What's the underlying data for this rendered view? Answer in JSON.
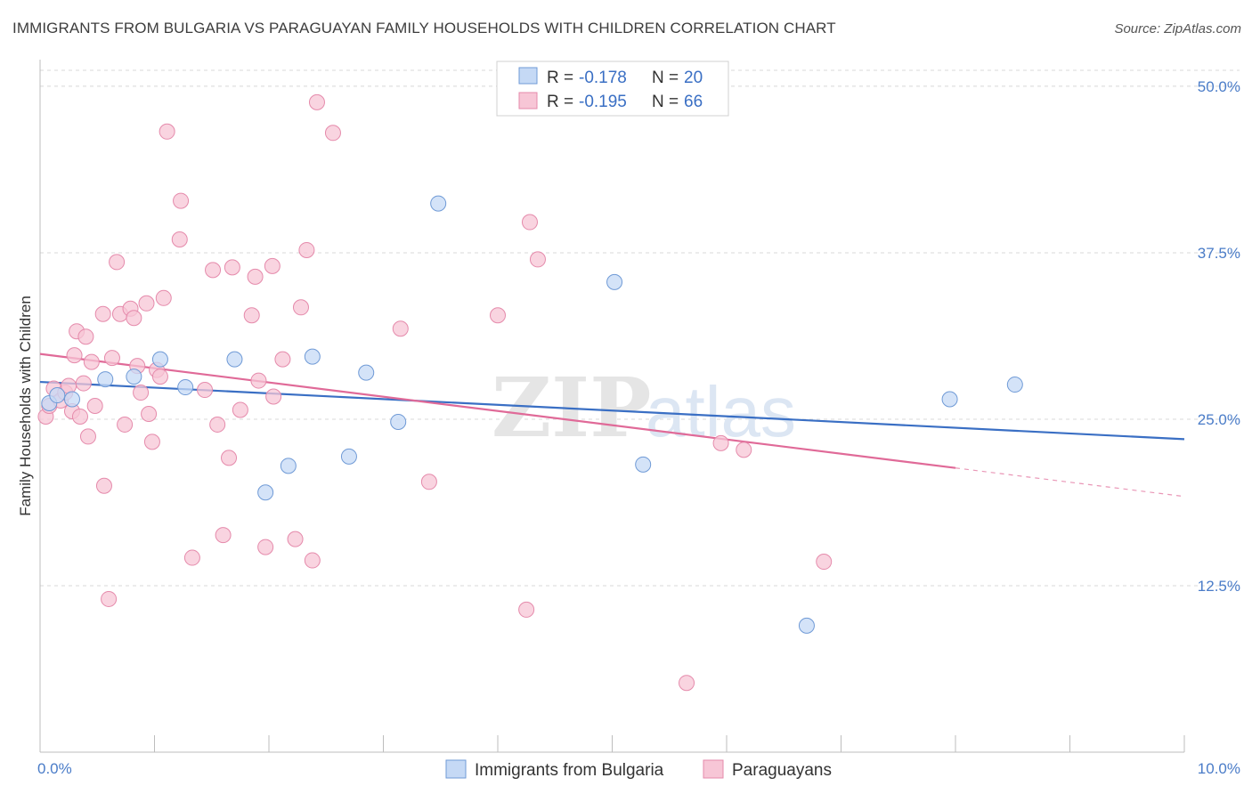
{
  "header": {
    "title": "IMMIGRANTS FROM BULGARIA VS PARAGUAYAN FAMILY HOUSEHOLDS WITH CHILDREN CORRELATION CHART",
    "source": "Source: ZipAtlas.com"
  },
  "watermark": {
    "part1": "ZIP",
    "part2": "atlas"
  },
  "colors": {
    "blue": "#3a6fc4",
    "blue_fill": "#c5d9f5",
    "pink": "#e06a98",
    "pink_fill": "#f7c6d6",
    "tick": "#4a7cc8",
    "grid": "#d8d8d8"
  },
  "chart_data": {
    "type": "scatter",
    "title": "IMMIGRANTS FROM BULGARIA VS PARAGUAYAN FAMILY HOUSEHOLDS WITH CHILDREN CORRELATION CHART",
    "xlabel": "",
    "ylabel": "Family Households with Children",
    "xlim": [
      0,
      10
    ],
    "ylim": [
      0,
      52
    ],
    "x_tick_labels": [
      "0.0%",
      "10.0%"
    ],
    "y_ticks": [
      12.5,
      25.0,
      37.5,
      50.0
    ],
    "y_tick_labels": [
      "12.5%",
      "25.0%",
      "37.5%",
      "50.0%"
    ],
    "grid": true,
    "legend_position": "top-center",
    "series": [
      {
        "name": "Immigrants from Bulgaria",
        "R_label": "R =",
        "R": "-0.178",
        "N_label": "N =",
        "N": "20",
        "color": "#3a6fc4",
        "trend": {
          "x": [
            0,
            10
          ],
          "y": [
            27.8,
            23.5
          ],
          "solid_until": 10
        },
        "points": [
          [
            0.08,
            26.2
          ],
          [
            0.15,
            26.8
          ],
          [
            0.28,
            26.5
          ],
          [
            0.57,
            28.0
          ],
          [
            0.82,
            28.2
          ],
          [
            1.05,
            29.5
          ],
          [
            1.27,
            27.4
          ],
          [
            1.7,
            29.5
          ],
          [
            1.97,
            19.5
          ],
          [
            2.17,
            21.5
          ],
          [
            2.38,
            29.7
          ],
          [
            2.7,
            22.2
          ],
          [
            2.85,
            28.5
          ],
          [
            3.13,
            24.8
          ],
          [
            3.48,
            41.2
          ],
          [
            5.02,
            35.3
          ],
          [
            5.27,
            21.6
          ],
          [
            6.7,
            9.5
          ],
          [
            7.95,
            26.5
          ],
          [
            8.52,
            27.6
          ]
        ]
      },
      {
        "name": "Paraguayans",
        "R_label": "R =",
        "R": "-0.195",
        "N_label": "N =",
        "N": "66",
        "color": "#e06a98",
        "trend": {
          "x": [
            0,
            10
          ],
          "y": [
            29.9,
            19.2
          ],
          "solid_until": 8.0
        },
        "points": [
          [
            0.05,
            25.2
          ],
          [
            0.08,
            26.0
          ],
          [
            0.12,
            27.3
          ],
          [
            0.18,
            26.4
          ],
          [
            0.22,
            27.0
          ],
          [
            0.25,
            27.5
          ],
          [
            0.28,
            25.6
          ],
          [
            0.3,
            29.8
          ],
          [
            0.32,
            31.6
          ],
          [
            0.35,
            25.2
          ],
          [
            0.38,
            27.7
          ],
          [
            0.4,
            31.2
          ],
          [
            0.42,
            23.7
          ],
          [
            0.45,
            29.3
          ],
          [
            0.48,
            26.0
          ],
          [
            0.55,
            32.9
          ],
          [
            0.56,
            20.0
          ],
          [
            0.6,
            11.5
          ],
          [
            0.63,
            29.6
          ],
          [
            0.67,
            36.8
          ],
          [
            0.7,
            32.9
          ],
          [
            0.74,
            24.6
          ],
          [
            0.79,
            33.3
          ],
          [
            0.82,
            32.6
          ],
          [
            0.85,
            29.0
          ],
          [
            0.88,
            27.0
          ],
          [
            0.93,
            33.7
          ],
          [
            0.95,
            25.4
          ],
          [
            0.98,
            23.3
          ],
          [
            1.02,
            28.7
          ],
          [
            1.05,
            28.2
          ],
          [
            1.08,
            34.1
          ],
          [
            1.11,
            46.6
          ],
          [
            1.23,
            41.4
          ],
          [
            1.22,
            38.5
          ],
          [
            1.33,
            14.6
          ],
          [
            1.44,
            27.2
          ],
          [
            1.51,
            36.2
          ],
          [
            1.55,
            24.6
          ],
          [
            1.6,
            16.3
          ],
          [
            1.65,
            22.1
          ],
          [
            1.68,
            36.4
          ],
          [
            1.75,
            25.7
          ],
          [
            1.85,
            32.8
          ],
          [
            1.88,
            35.7
          ],
          [
            1.91,
            27.9
          ],
          [
            1.97,
            15.4
          ],
          [
            2.03,
            36.5
          ],
          [
            2.04,
            26.7
          ],
          [
            2.12,
            29.5
          ],
          [
            2.23,
            16.0
          ],
          [
            2.28,
            33.4
          ],
          [
            2.33,
            37.7
          ],
          [
            2.38,
            14.4
          ],
          [
            2.42,
            48.8
          ],
          [
            2.56,
            46.5
          ],
          [
            3.15,
            31.8
          ],
          [
            3.4,
            20.3
          ],
          [
            4.0,
            32.8
          ],
          [
            4.25,
            10.7
          ],
          [
            4.28,
            39.8
          ],
          [
            4.35,
            37.0
          ],
          [
            5.65,
            5.2
          ],
          [
            5.95,
            23.2
          ],
          [
            6.15,
            22.7
          ],
          [
            6.85,
            14.3
          ]
        ]
      }
    ]
  }
}
